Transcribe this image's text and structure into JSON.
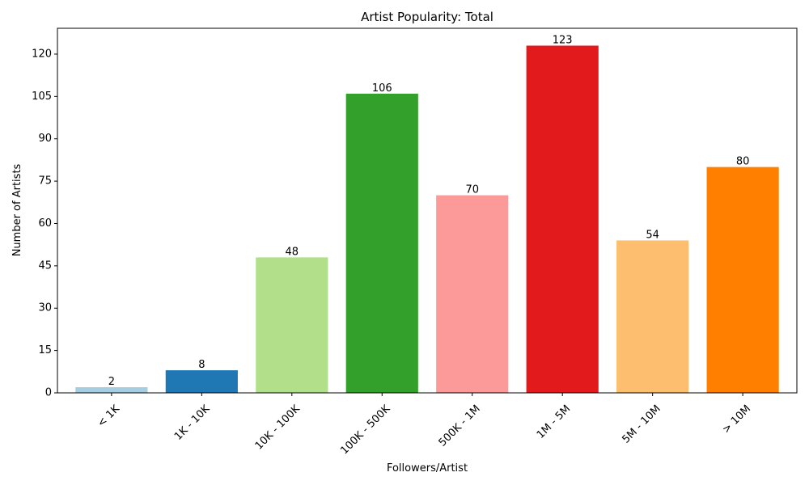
{
  "chart_data": {
    "type": "bar",
    "title": "Artist Popularity: Total",
    "xlabel": "Followers/Artist",
    "ylabel": "Number of Artists",
    "categories": [
      "< 1K",
      "1K - 10K",
      "10K - 100K",
      "100K - 500K",
      "500K - 1M",
      "1M - 5M",
      "5M - 10M",
      "> 10M"
    ],
    "values": [
      2,
      8,
      48,
      106,
      70,
      123,
      54,
      80
    ],
    "colors": [
      "#a6cee3",
      "#1f78b4",
      "#b2df8a",
      "#33a02c",
      "#fb9a99",
      "#e31a1c",
      "#fdbf6f",
      "#ff7f00"
    ],
    "ylim": [
      0,
      129.15
    ],
    "yticks": [
      0,
      15,
      30,
      45,
      60,
      75,
      90,
      105,
      120
    ],
    "xtick_rotation": 45,
    "grid": false,
    "legend": "none"
  }
}
